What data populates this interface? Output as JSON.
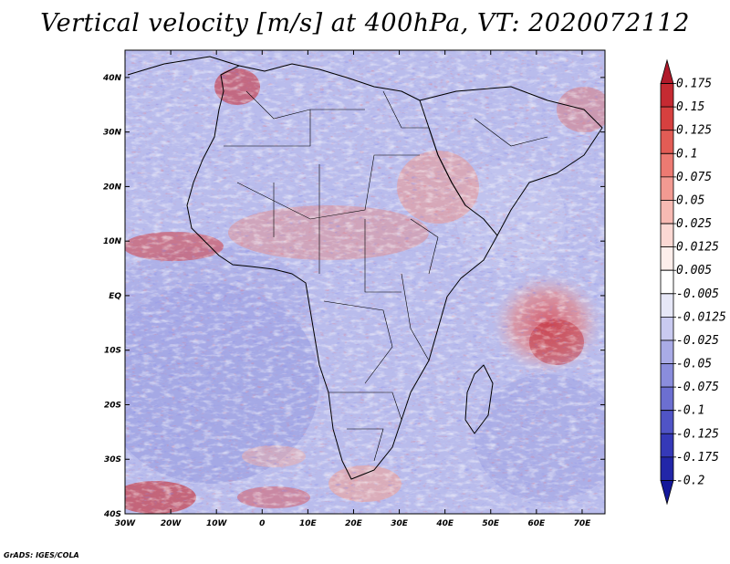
{
  "title": "Vertical velocity [m/s] at 400hPa, VT: 2020072112",
  "footer": "GrADS: IGES/COLA",
  "map": {
    "region": "Africa",
    "lon_range": [
      -30,
      75
    ],
    "lat_range": [
      -40,
      45
    ],
    "lon_ticks": [
      "30W",
      "20W",
      "10W",
      "0",
      "10E",
      "20E",
      "30E",
      "40E",
      "50E",
      "60E",
      "70E"
    ],
    "lon_tick_values": [
      -30,
      -20,
      -10,
      0,
      10,
      20,
      30,
      40,
      50,
      60,
      70
    ],
    "lat_ticks": [
      "40N",
      "30N",
      "20N",
      "10N",
      "EQ",
      "10S",
      "20S",
      "30S",
      "40S"
    ],
    "lat_tick_values": [
      40,
      30,
      20,
      10,
      0,
      -10,
      -20,
      -30,
      -40
    ]
  },
  "colorbar": {
    "labels": [
      "0.175",
      "0.15",
      "0.125",
      "0.1",
      "0.075",
      "0.05",
      "0.025",
      "0.0125",
      "0.005",
      "-0.005",
      "-0.0125",
      "-0.025",
      "-0.05",
      "-0.075",
      "-0.1",
      "-0.125",
      "-0.175",
      "-0.2"
    ],
    "colors": [
      "#b01a2a",
      "#c52a32",
      "#d6403f",
      "#e25c55",
      "#ec7a72",
      "#f29a92",
      "#f7bab3",
      "#fbd8d3",
      "#fdeeeb",
      "#ffffff",
      "#e6e7f7",
      "#c9caf0",
      "#a9abe6",
      "#8a8ddc",
      "#6c6fd1",
      "#5054c6",
      "#3539b8",
      "#2226a8",
      "#14189a"
    ]
  },
  "colors": {
    "frame": "#000000",
    "background": "#ffffff"
  }
}
